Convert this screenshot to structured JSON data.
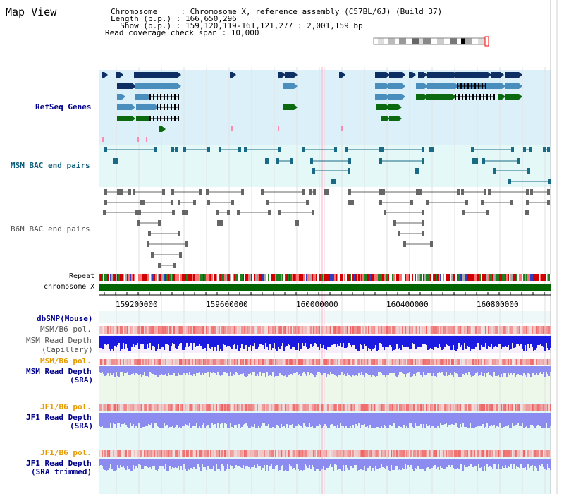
{
  "header": {
    "title": "Map View",
    "info_lines": [
      "Chromosome     : Chromosome X, reference assembly (C57BL/6J) (Build 37)",
      "Length (b.p.) : 166,650,296",
      "  Show (b.p.) : 159,120,119-161,121,277 : 2,001,159 bp",
      "Read coverage check span : 10,000"
    ]
  },
  "colors": {
    "refseq_bg": "#dcf0fa",
    "bac_bg": "#e4f8f8",
    "snp_bg": "#eef8f8",
    "msm_cap_bg": "#f6eefa",
    "msm_sra_bg": "#eef8ea",
    "jf1_bg": "#e4f8f8",
    "gene_navy": "#0d2f63",
    "gene_blue": "#4a8ebe",
    "gene_green": "#0b6a10",
    "msm_bac": "#1a6a86",
    "b6n_bac": "#666666",
    "chromosome": "#006400",
    "polymorphism": "#f06060",
    "depth_capillary": "#1a1ae0",
    "depth_sra": "#8c8cf0",
    "label_navy": "#00008b",
    "label_teal": "#0d5c7a",
    "label_orange": "#e69a00"
  },
  "tracks": {
    "refseq": "RefSeq Genes",
    "msm_bac": "MSM BAC end pairs",
    "b6n_bac": "B6N BAC end pairs",
    "repeat": "Repeat",
    "chromosome": "chromosome X",
    "dbsnp": "dbSNP(Mouse)",
    "msm_b6_pol_1": "MSM/B6 pol.",
    "msm_depth_cap_1": "MSM Read Depth",
    "msm_depth_cap_2": "(Capillary)",
    "msm_b6_pol_2": "MSM/B6 pol.",
    "msm_depth_sra_1": "MSM Read Depth",
    "msm_depth_sra_2": "(SRA)",
    "jf1_b6_pol_1": "JF1/B6 pol.",
    "jf1_depth_sra_1": "JF1 Read Depth",
    "jf1_depth_sra_2": "(SRA)",
    "jf1_b6_pol_2": "JF1/B6 pol.",
    "jf1_depth_trim_1": "JF1 Read Depth",
    "jf1_depth_trim_2": "(SRA trimmed)"
  },
  "ruler": {
    "ticks": [
      "159200000",
      "159600000",
      "160000000",
      "160400000",
      "160800000"
    ]
  }
}
